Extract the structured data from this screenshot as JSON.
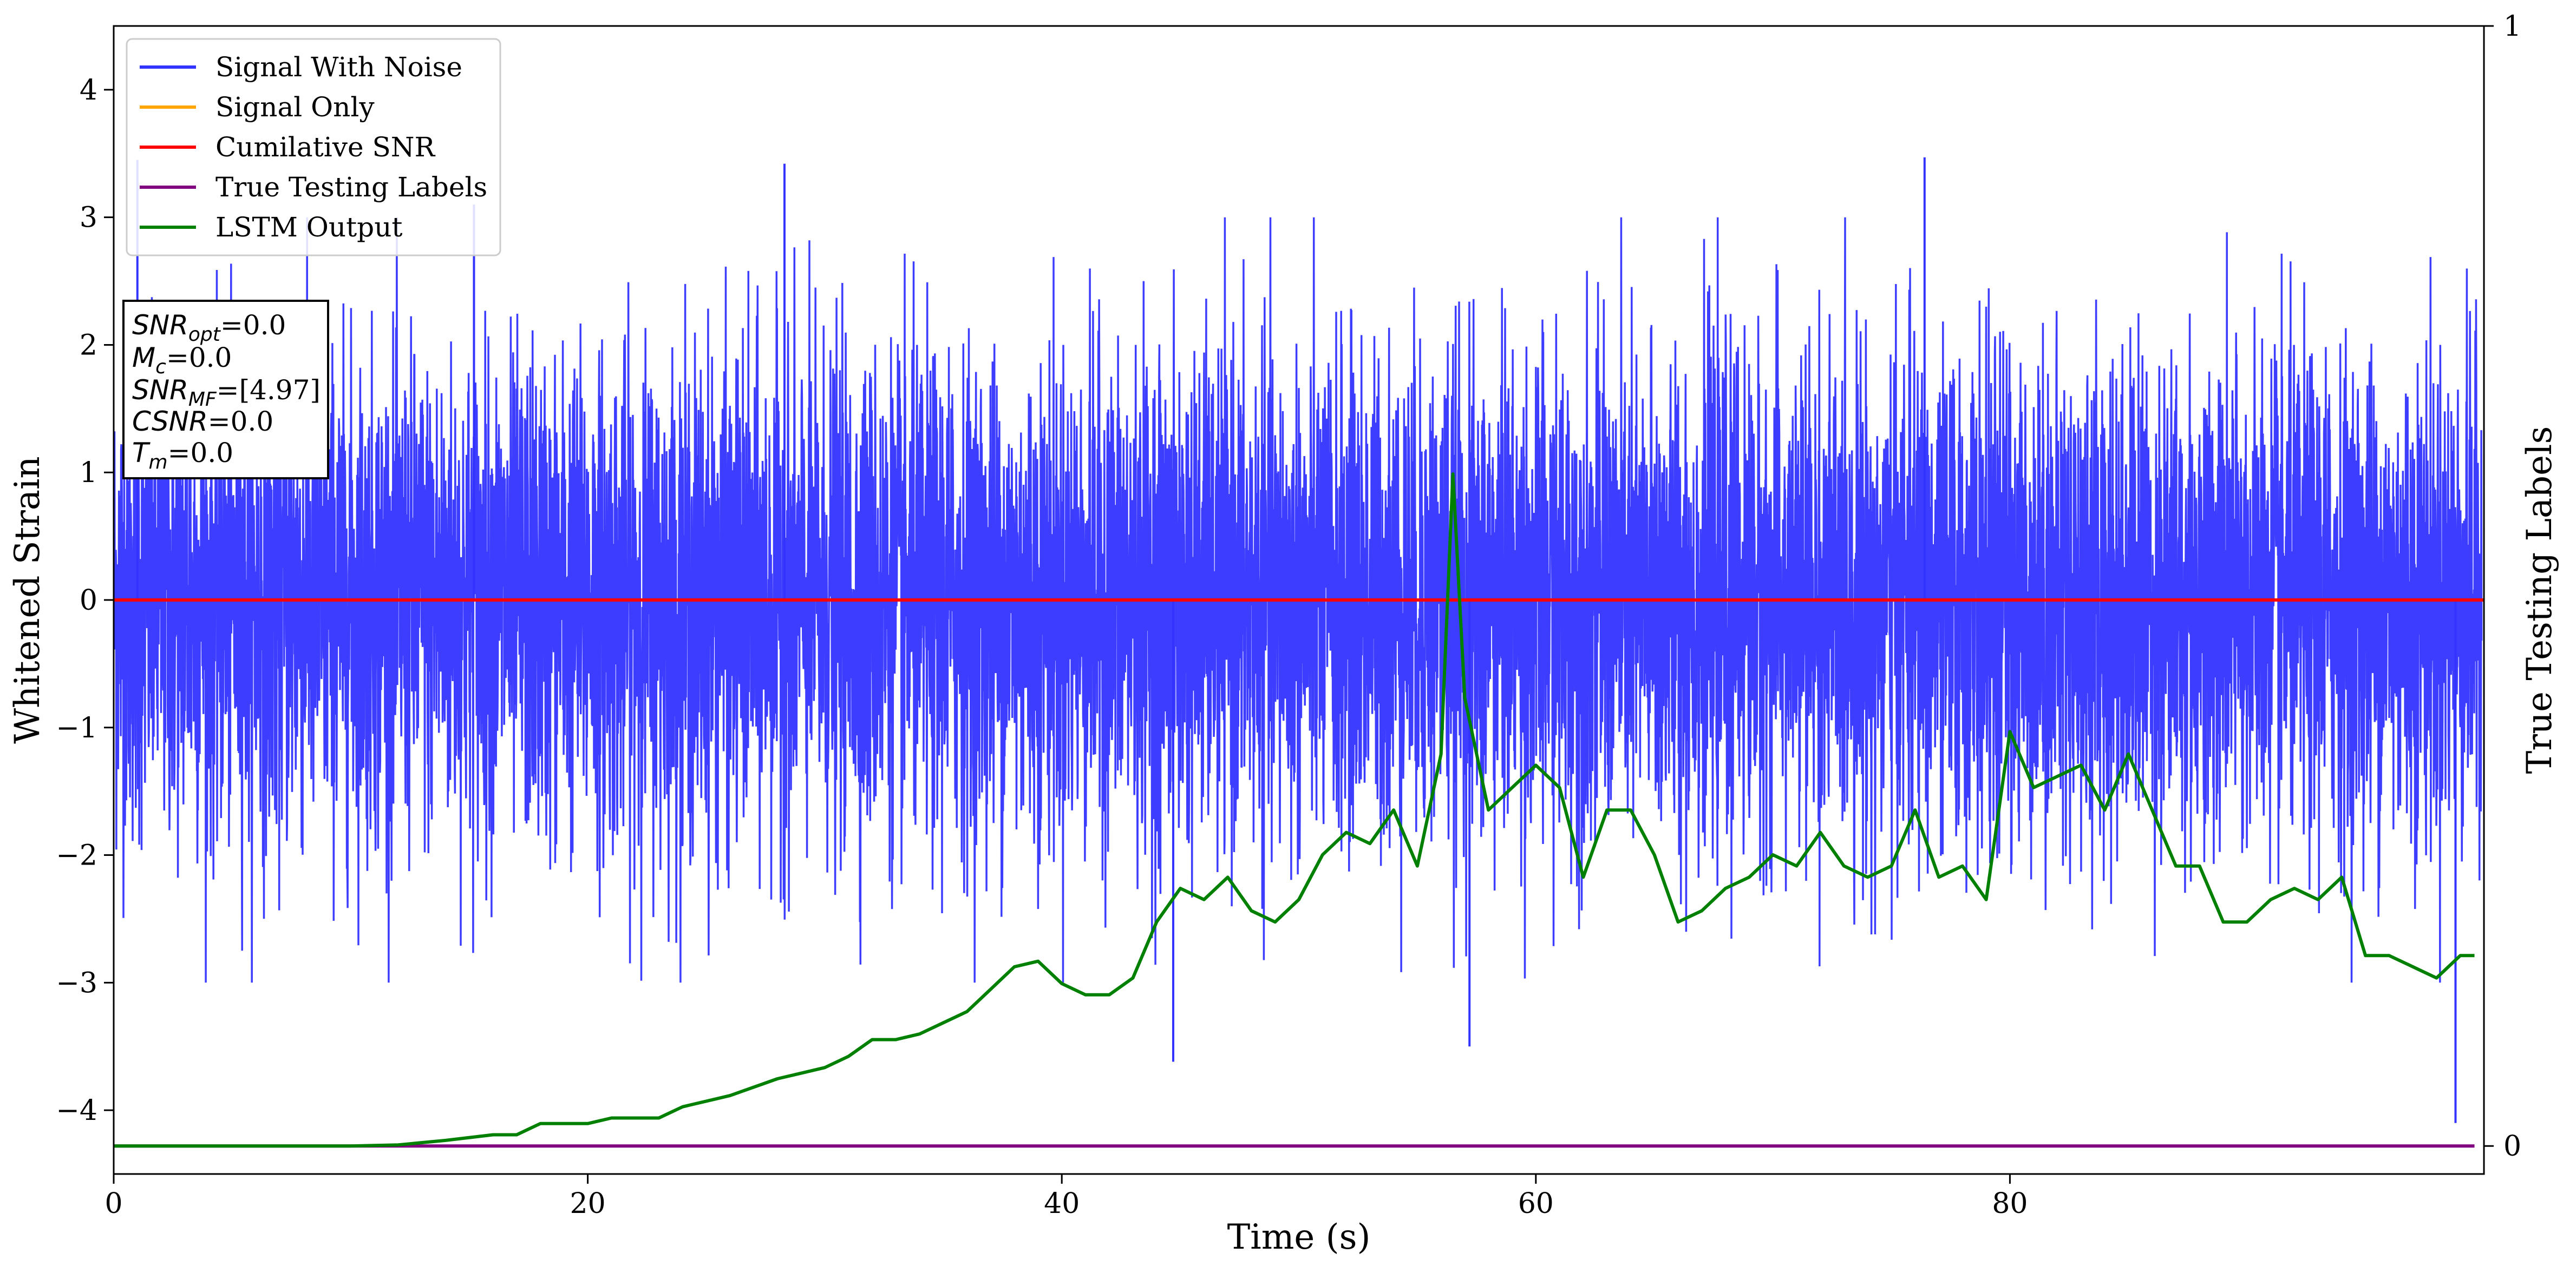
{
  "chart_data": {
    "type": "line",
    "xlabel": "Time (s)",
    "ylabel": "Whitened Strain",
    "y2label": "True Testing Labels",
    "xlim": [
      0,
      100
    ],
    "ylim": [
      -4.5,
      4.5
    ],
    "y2lim": [
      -0.025,
      1
    ],
    "x_ticks": [
      0,
      20,
      40,
      60,
      80
    ],
    "y_ticks": [
      -4,
      -3,
      -2,
      -1,
      0,
      1,
      2,
      3,
      4
    ],
    "y2_ticks": [
      0,
      1
    ],
    "grid": false,
    "legend_position": "top-left",
    "series": [
      {
        "name": "Signal With Noise",
        "color": "#3333ff",
        "axis": "left",
        "description_values": {
          "mean": 0.0,
          "approx_std": 1.0,
          "min": -4.1,
          "max": 3.47
        },
        "notable_peaks": [
          [
            1,
            3.45
          ],
          [
            15.2,
            3.1
          ],
          [
            28.3,
            3.42
          ],
          [
            44.7,
            -3.62
          ],
          [
            57.2,
            -3.5
          ],
          [
            76.4,
            3.47
          ],
          [
            98.8,
            -4.1
          ]
        ]
      },
      {
        "name": "Signal Only",
        "color": "#ffa500",
        "axis": "left",
        "x": [
          0,
          100
        ],
        "values": [
          0,
          0
        ]
      },
      {
        "name": "Cumilative SNR",
        "color": "#ff0000",
        "axis": "left",
        "x": [
          0,
          100
        ],
        "values": [
          0,
          0
        ]
      },
      {
        "name": "True Testing Labels",
        "color": "#800080",
        "axis": "right",
        "x": [
          0,
          99.6
        ],
        "values": [
          0,
          0
        ]
      },
      {
        "name": "LSTM Output",
        "color": "#008000",
        "axis": "right",
        "x": [
          0,
          10,
          12,
          14,
          16,
          17,
          18,
          19,
          20,
          21,
          23,
          24,
          26,
          28,
          29,
          30,
          31,
          32,
          33,
          34,
          35,
          36,
          37,
          38,
          39,
          40,
          41,
          42,
          43,
          44,
          45,
          46,
          47,
          48,
          49,
          50,
          51,
          52,
          53,
          54,
          55,
          56,
          56.5,
          57,
          58,
          59,
          60,
          61,
          62,
          63,
          64,
          65,
          66,
          67,
          68,
          69,
          70,
          71,
          72,
          73,
          74,
          75,
          76,
          77,
          78,
          79,
          80,
          81,
          82,
          83,
          84,
          85,
          86,
          87,
          88,
          89,
          90,
          91,
          92,
          93,
          94,
          95,
          96,
          97,
          98,
          99,
          99.6
        ],
        "values": [
          0,
          0,
          0.001,
          0.005,
          0.01,
          0.01,
          0.02,
          0.02,
          0.02,
          0.025,
          0.025,
          0.035,
          0.045,
          0.06,
          0.065,
          0.07,
          0.08,
          0.095,
          0.095,
          0.1,
          0.11,
          0.12,
          0.14,
          0.16,
          0.165,
          0.145,
          0.135,
          0.135,
          0.15,
          0.2,
          0.23,
          0.22,
          0.24,
          0.21,
          0.2,
          0.22,
          0.26,
          0.28,
          0.27,
          0.3,
          0.25,
          0.35,
          0.6,
          0.4,
          0.3,
          0.32,
          0.34,
          0.32,
          0.24,
          0.3,
          0.3,
          0.26,
          0.2,
          0.21,
          0.23,
          0.24,
          0.26,
          0.25,
          0.28,
          0.25,
          0.24,
          0.25,
          0.3,
          0.24,
          0.25,
          0.22,
          0.37,
          0.32,
          0.33,
          0.34,
          0.3,
          0.35,
          0.3,
          0.25,
          0.25,
          0.2,
          0.2,
          0.22,
          0.23,
          0.22,
          0.24,
          0.17,
          0.17,
          0.16,
          0.15,
          0.17,
          0.17
        ]
      }
    ]
  },
  "annotation": {
    "snr_opt_main": "SNR",
    "snr_opt_sub": "opt",
    "snr_opt_val": "=0.0",
    "mc_main": "M",
    "mc_sub": "c",
    "mc_val": "=0.0",
    "snr_mf_main": "SNR",
    "snr_mf_sub": "MF",
    "snr_mf_val": "=[4.97]",
    "csnr_main": "CSNR",
    "csnr_val": "=0.0",
    "tm_main": "T",
    "tm_sub": "m",
    "tm_val": "=0.0"
  }
}
